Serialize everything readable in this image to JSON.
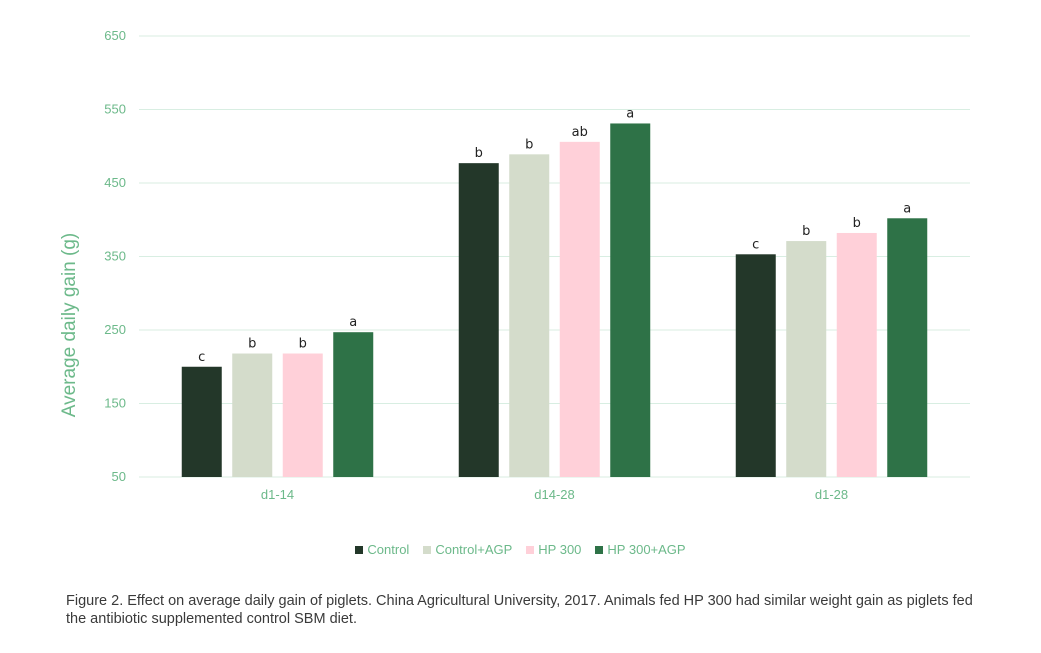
{
  "chart_data": {
    "type": "bar",
    "categories": [
      "d1-14",
      "d14-28",
      "d1-28"
    ],
    "series": [
      {
        "name": "Control",
        "color": "#233729",
        "values": [
          200,
          477,
          353
        ],
        "labels": [
          "c",
          "b",
          "c"
        ]
      },
      {
        "name": "Control+AGP",
        "color": "#d4dccb",
        "values": [
          218,
          489,
          371
        ],
        "labels": [
          "b",
          "b",
          "b"
        ]
      },
      {
        "name": "HP 300",
        "color": "#ffd0d9",
        "values": [
          218,
          506,
          382
        ],
        "labels": [
          "b",
          "ab",
          "b"
        ]
      },
      {
        "name": "HP 300+AGP",
        "color": "#2e7247",
        "values": [
          247,
          531,
          402
        ],
        "labels": [
          "a",
          "a",
          "a"
        ]
      }
    ],
    "ylabel": "Average daily gain (g)",
    "xlabel": "",
    "ylim": [
      50,
      650
    ],
    "yticks": [
      50,
      150,
      250,
      350,
      450,
      550,
      650
    ],
    "grid": true,
    "legend_position": "bottom"
  },
  "caption": "Figure 2. Effect on average daily gain of piglets. China Agricultural University, 2017. Animals fed HP 300 had similar weight gain as piglets fed the antibiotic supplemented control SBM diet."
}
